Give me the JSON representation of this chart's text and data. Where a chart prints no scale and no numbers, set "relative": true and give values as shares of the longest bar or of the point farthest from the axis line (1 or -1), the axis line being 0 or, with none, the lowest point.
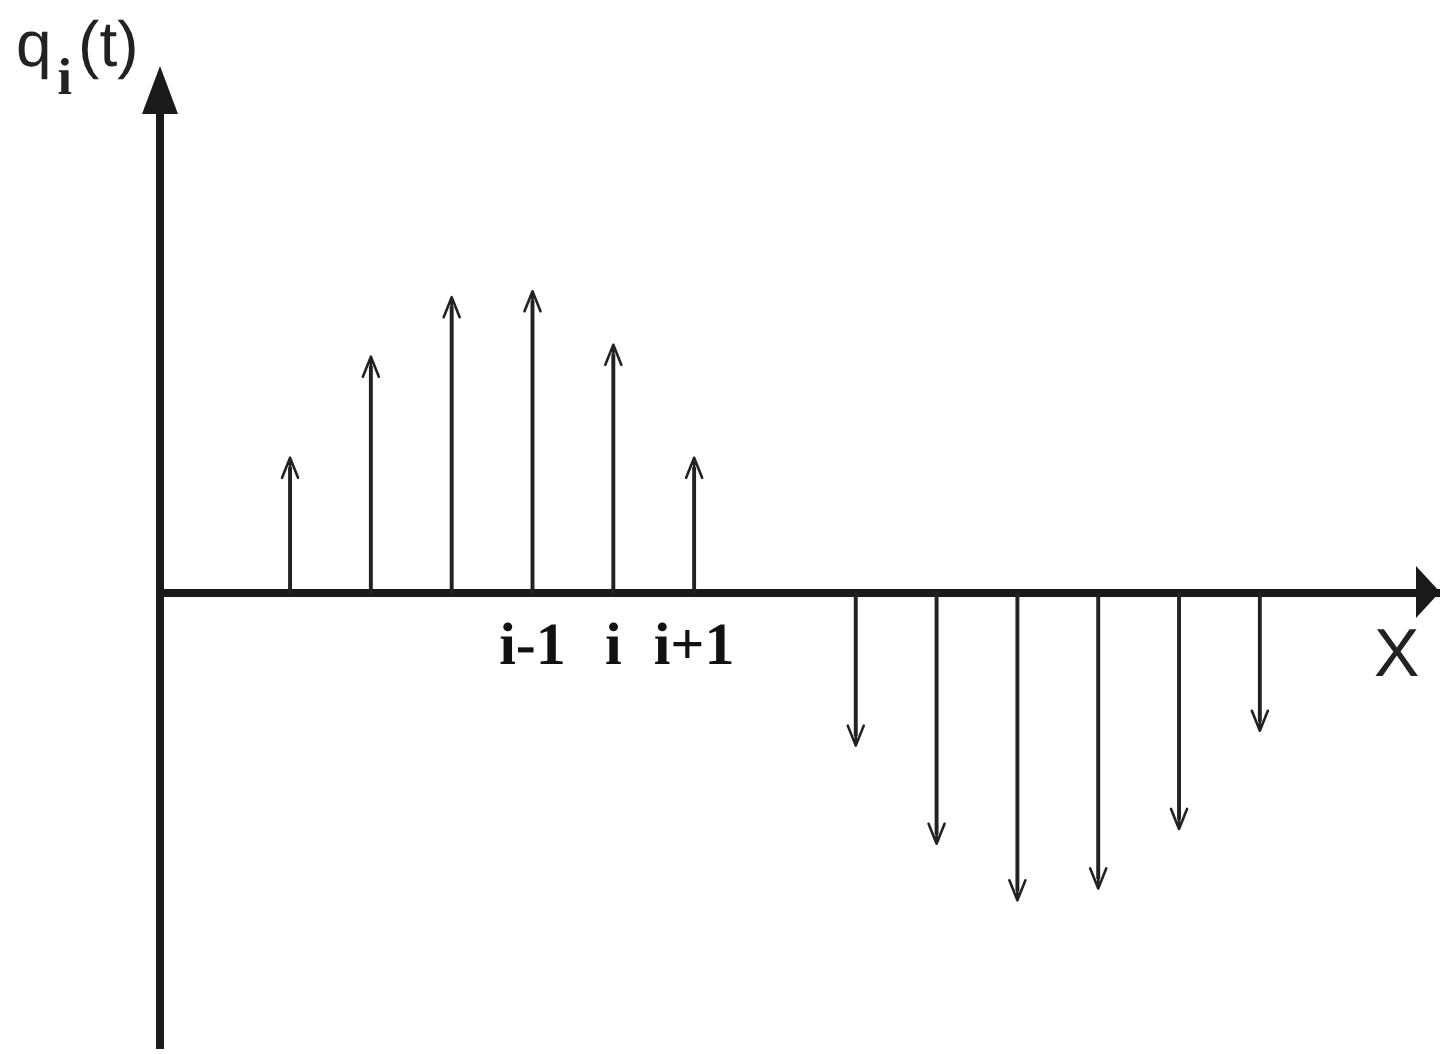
{
  "chart_data": {
    "type": "lollipop",
    "relative": true,
    "xlabel": "X",
    "ylabel": "q$_{i}$(t)",
    "categories": [
      null,
      null,
      null,
      "i-1",
      "i",
      "i+1",
      null,
      null,
      null,
      null,
      null,
      null,
      null
    ],
    "values": [
      0.42,
      0.76,
      0.96,
      0.98,
      0.8,
      0.42,
      null,
      -0.48,
      -0.81,
      -1,
      -0.96,
      -0.76,
      -0.43
    ],
    "color": "#222222"
  }
}
